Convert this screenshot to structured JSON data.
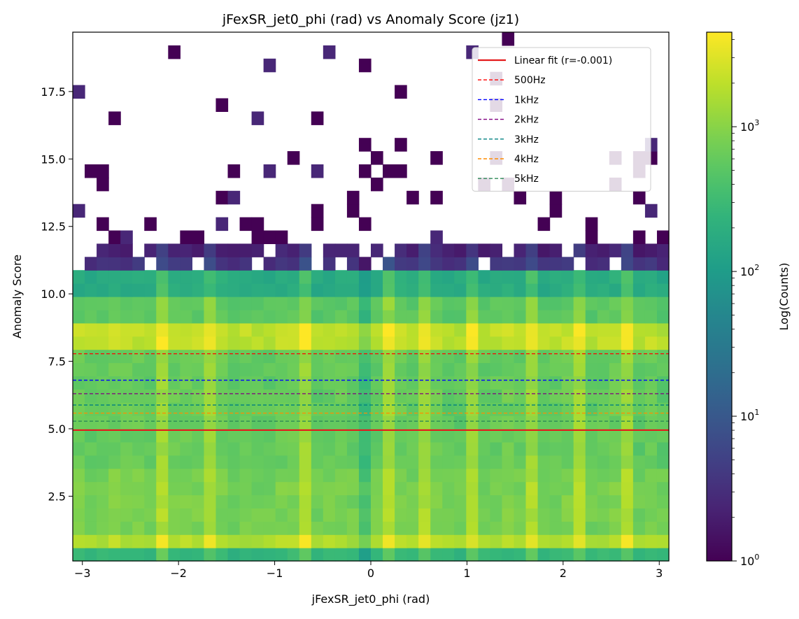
{
  "chart_data": {
    "type": "heatmap",
    "title": "jFexSR_jet0_phi (rad) vs Anomaly Score (jz1)",
    "xlabel": "jFexSR_jet0_phi (rad)",
    "ylabel": "Anomaly Score",
    "xlim": [
      -3.1,
      3.1
    ],
    "ylim": [
      0.1,
      19.7
    ],
    "x_ticks": [
      -3,
      -2,
      -1,
      0,
      1,
      2,
      3
    ],
    "x_tick_labels": [
      "−3",
      "−2",
      "−1",
      "0",
      "1",
      "2",
      "3"
    ],
    "y_ticks": [
      2.5,
      5.0,
      7.5,
      10.0,
      12.5,
      15.0,
      17.5
    ],
    "y_tick_labels": [
      "2.5",
      "5.0",
      "7.5",
      "10.0",
      "12.5",
      "15.0",
      "17.5"
    ],
    "colorbar": {
      "label": "Log(Counts)",
      "scale": "log",
      "range": [
        1,
        4500
      ],
      "colormap": "viridis",
      "tick_values": [
        1,
        10,
        100,
        1000
      ],
      "tick_labels": [
        {
          "base": "10",
          "exp": "0"
        },
        {
          "base": "10",
          "exp": "1"
        },
        {
          "base": "10",
          "exp": "2"
        },
        {
          "base": "10",
          "exp": "3"
        }
      ]
    },
    "bins": {
      "x_bins": 50,
      "y_bins": 40
    },
    "series": [
      {
        "name": "Linear fit (r=-0.001)",
        "kind": "line",
        "y": 4.95,
        "color": "#e41a1c",
        "style": "solid"
      },
      {
        "name": "500Hz",
        "kind": "hline",
        "y": 7.78,
        "color": "#ff0000",
        "style": "dashed"
      },
      {
        "name": "1kHz",
        "kind": "hline",
        "y": 6.8,
        "color": "#0000ff",
        "style": "dashed"
      },
      {
        "name": "2kHz",
        "kind": "hline",
        "y": 6.3,
        "color": "#800080",
        "style": "dashed"
      },
      {
        "name": "3kHz",
        "kind": "hline",
        "y": 5.88,
        "color": "#008080",
        "style": "dashed"
      },
      {
        "name": "4kHz",
        "kind": "hline",
        "y": 5.58,
        "color": "#ff8c00",
        "style": "dashed"
      },
      {
        "name": "5kHz",
        "kind": "hline",
        "y": 5.28,
        "color": "#2e8b57",
        "style": "dashed"
      }
    ],
    "legend_placement": "upper-right",
    "grid": false
  }
}
